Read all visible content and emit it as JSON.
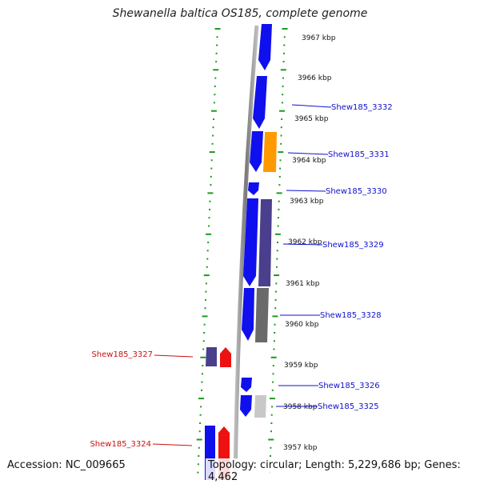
{
  "title": "Shewanella baltica OS185, complete genome",
  "accession_text": "Accession: NC_009665",
  "summary_text": "Topology: circular; Length: 5,229,686 bp; Genes: 4,462",
  "colors": {
    "forward_gene": "#1010ee",
    "reverse_gene": "#ee1111",
    "highlight_gene": "#ff9900",
    "purple_gene": "#4a3f8c",
    "gray_gene": "#6a6a6a",
    "lightgray_gene": "#c8c8c8",
    "tick": "#1d9a1d",
    "backbone": "#8a8a8a"
  },
  "kbp_labels": [
    "3967 kbp",
    "3966 kbp",
    "3965 kbp",
    "3964 kbp",
    "3963 kbp",
    "3962 kbp",
    "3961 kbp",
    "3960 kbp",
    "3959 kbp",
    "3958 kbp",
    "3957 kbp"
  ],
  "gene_labels_right": [
    "Shew185_3332",
    "Shew185_3331",
    "Shew185_3330",
    "Shew185_3329",
    "Shew185_3328",
    "Shew185_3326",
    "Shew185_3325"
  ],
  "gene_labels_left": [
    "Shew185_3327",
    "Shew185_3324"
  ]
}
